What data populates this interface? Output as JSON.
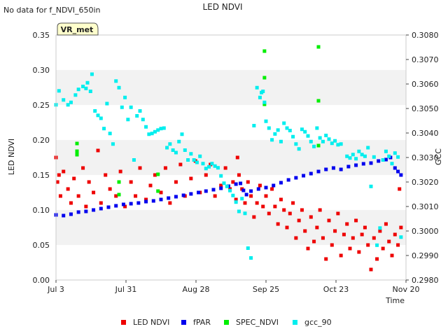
{
  "header": {
    "title": "LED NDVI",
    "note": "No data for f_NDVI_650in",
    "badge": "VR_met"
  },
  "chart_data": {
    "type": "scatter",
    "title": "LED NDVI",
    "xlabel": "Time",
    "ylabel": "LED NDVI",
    "y2label": "GCC",
    "x_ticks": [
      "Jul 3",
      "Jul 31",
      "Aug 28",
      "Sep 25",
      "Oct 23",
      "Nov 20"
    ],
    "x_range": [
      "Jul 3",
      "Nov 20"
    ],
    "ylim": [
      0.0,
      0.35
    ],
    "y_ticks": [
      "0.00",
      "0.05",
      "0.10",
      "0.15",
      "0.20",
      "0.25",
      "0.30",
      "0.35"
    ],
    "y2lim": [
      0.298,
      0.308
    ],
    "y2_ticks": [
      "0.2980",
      "0.2990",
      "0.3000",
      "0.3010",
      "0.3020",
      "0.3030",
      "0.3040",
      "0.3050",
      "0.3060",
      "0.3070",
      "0.3080"
    ],
    "grid": "horizontal alternating bands",
    "legend": "bottom",
    "series": [
      {
        "name": "LED NDVI",
        "axis": "left",
        "color": "#ee0000",
        "points": [
          [
            0,
            0.175
          ],
          [
            1,
            0.14
          ],
          [
            2,
            0.15
          ],
          [
            3,
            0.12
          ],
          [
            5,
            0.155
          ],
          [
            8,
            0.13
          ],
          [
            10,
            0.11
          ],
          [
            12,
            0.145
          ],
          [
            15,
            0.12
          ],
          [
            18,
            0.16
          ],
          [
            20,
            0.105
          ],
          [
            22,
            0.14
          ],
          [
            25,
            0.125
          ],
          [
            28,
            0.185
          ],
          [
            30,
            0.11
          ],
          [
            33,
            0.15
          ],
          [
            36,
            0.13
          ],
          [
            40,
            0.12
          ],
          [
            43,
            0.155
          ],
          [
            46,
            0.105
          ],
          [
            50,
            0.14
          ],
          [
            53,
            0.12
          ],
          [
            56,
            0.16
          ],
          [
            60,
            0.115
          ],
          [
            63,
            0.135
          ],
          [
            66,
            0.15
          ],
          [
            70,
            0.125
          ],
          [
            73,
            0.16
          ],
          [
            76,
            0.11
          ],
          [
            80,
            0.14
          ],
          [
            83,
            0.165
          ],
          [
            86,
            0.12
          ],
          [
            90,
            0.145
          ],
          [
            93,
            0.17
          ],
          [
            96,
            0.125
          ],
          [
            100,
            0.15
          ],
          [
            103,
            0.165
          ],
          [
            106,
            0.12
          ],
          [
            110,
            0.135
          ],
          [
            113,
            0.16
          ],
          [
            116,
            0.13
          ],
          [
            118,
            0.14
          ],
          [
            120,
            0.115
          ],
          [
            121,
            0.175
          ],
          [
            122,
            0.15
          ],
          [
            124,
            0.13
          ],
          [
            126,
            0.11
          ],
          [
            128,
            0.14
          ],
          [
            130,
            0.12
          ],
          [
            132,
            0.09
          ],
          [
            134,
            0.11
          ],
          [
            136,
            0.135
          ],
          [
            138,
            0.105
          ],
          [
            140,
            0.12
          ],
          [
            142,
            0.095
          ],
          [
            144,
            0.13
          ],
          [
            146,
            0.105
          ],
          [
            148,
            0.08
          ],
          [
            150,
            0.115
          ],
          [
            152,
            0.1
          ],
          [
            154,
            0.075
          ],
          [
            156,
            0.095
          ],
          [
            158,
            0.11
          ],
          [
            160,
            0.06
          ],
          [
            162,
            0.085
          ],
          [
            164,
            0.1
          ],
          [
            166,
            0.07
          ],
          [
            168,
            0.045
          ],
          [
            170,
            0.09
          ],
          [
            172,
            0.055
          ],
          [
            174,
            0.075
          ],
          [
            176,
            0.1
          ],
          [
            178,
            0.06
          ],
          [
            180,
            0.03
          ],
          [
            182,
            0.085
          ],
          [
            184,
            0.05
          ],
          [
            186,
            0.07
          ],
          [
            188,
            0.095
          ],
          [
            190,
            0.035
          ],
          [
            192,
            0.065
          ],
          [
            194,
            0.08
          ],
          [
            196,
            0.045
          ],
          [
            198,
            0.06
          ],
          [
            200,
            0.085
          ],
          [
            202,
            0.04
          ],
          [
            204,
            0.065
          ],
          [
            206,
            0.075
          ],
          [
            208,
            0.05
          ],
          [
            210,
            0.015
          ],
          [
            212,
            0.06
          ],
          [
            214,
            0.03
          ],
          [
            216,
            0.07
          ],
          [
            218,
            0.045
          ],
          [
            220,
            0.08
          ],
          [
            222,
            0.055
          ],
          [
            224,
            0.035
          ],
          [
            226,
            0.065
          ],
          [
            228,
            0.05
          ],
          [
            229,
            0.13
          ],
          [
            230,
            0.075
          ]
        ]
      },
      {
        "name": "fPAR",
        "axis": "left",
        "color": "#0000ee",
        "points": [
          [
            0,
            0.093
          ],
          [
            5,
            0.092
          ],
          [
            10,
            0.094
          ],
          [
            15,
            0.097
          ],
          [
            20,
            0.098
          ],
          [
            25,
            0.1
          ],
          [
            30,
            0.102
          ],
          [
            35,
            0.104
          ],
          [
            40,
            0.106
          ],
          [
            45,
            0.108
          ],
          [
            50,
            0.109
          ],
          [
            55,
            0.11
          ],
          [
            60,
            0.112
          ],
          [
            65,
            0.113
          ],
          [
            70,
            0.115
          ],
          [
            75,
            0.117
          ],
          [
            80,
            0.119
          ],
          [
            85,
            0.121
          ],
          [
            90,
            0.123
          ],
          [
            95,
            0.125
          ],
          [
            100,
            0.127
          ],
          [
            105,
            0.129
          ],
          [
            110,
            0.131
          ],
          [
            115,
            0.134
          ],
          [
            120,
            0.137
          ],
          [
            123,
            0.138
          ],
          [
            125,
            0.128
          ],
          [
            127,
            0.122
          ],
          [
            130,
            0.127
          ],
          [
            135,
            0.13
          ],
          [
            140,
            0.132
          ],
          [
            145,
            0.135
          ],
          [
            150,
            0.139
          ],
          [
            155,
            0.143
          ],
          [
            160,
            0.146
          ],
          [
            165,
            0.149
          ],
          [
            170,
            0.152
          ],
          [
            175,
            0.155
          ],
          [
            180,
            0.158
          ],
          [
            185,
            0.16
          ],
          [
            190,
            0.158
          ],
          [
            195,
            0.162
          ],
          [
            200,
            0.164
          ],
          [
            205,
            0.166
          ],
          [
            210,
            0.167
          ],
          [
            215,
            0.17
          ],
          [
            220,
            0.172
          ],
          [
            223,
            0.175
          ],
          [
            226,
            0.16
          ],
          [
            228,
            0.155
          ],
          [
            230,
            0.15
          ]
        ]
      },
      {
        "name": "SPEC_NDVI",
        "axis": "left",
        "color": "#00ee00",
        "points": [
          [
            14,
            0.195
          ],
          [
            14,
            0.184
          ],
          [
            14,
            0.179
          ],
          [
            42,
            0.14
          ],
          [
            42,
            0.122
          ],
          [
            68,
            0.151
          ],
          [
            68,
            0.127
          ],
          [
            139,
            0.327
          ],
          [
            139,
            0.289
          ],
          [
            139,
            0.251
          ],
          [
            175,
            0.333
          ],
          [
            175,
            0.256
          ],
          [
            175,
            0.192
          ]
        ]
      },
      {
        "name": "gcc_90",
        "axis": "right",
        "color": "#00eeee",
        "points": [
          [
            0,
            0.30515
          ],
          [
            2,
            0.30572
          ],
          [
            5,
            0.30535
          ],
          [
            8,
            0.30515
          ],
          [
            10,
            0.30525
          ],
          [
            13,
            0.30555
          ],
          [
            15,
            0.30578
          ],
          [
            18,
            0.3059
          ],
          [
            20,
            0.30582
          ],
          [
            21,
            0.30605
          ],
          [
            23,
            0.3057
          ],
          [
            24,
            0.3064
          ],
          [
            26,
            0.3049
          ],
          [
            28,
            0.30472
          ],
          [
            30,
            0.3046
          ],
          [
            32,
            0.30418
          ],
          [
            34,
            0.3052
          ],
          [
            36,
            0.30398
          ],
          [
            38,
            0.30355
          ],
          [
            40,
            0.30612
          ],
          [
            42,
            0.30585
          ],
          [
            44,
            0.30505
          ],
          [
            46,
            0.30545
          ],
          [
            48,
            0.30455
          ],
          [
            50,
            0.30505
          ],
          [
            52,
            0.3029
          ],
          [
            54,
            0.3047
          ],
          [
            56,
            0.3049
          ],
          [
            58,
            0.30455
          ],
          [
            60,
            0.30425
          ],
          [
            62,
            0.30395
          ],
          [
            64,
            0.30398
          ],
          [
            66,
            0.30405
          ],
          [
            68,
            0.30412
          ],
          [
            70,
            0.30418
          ],
          [
            72,
            0.3042
          ],
          [
            74,
            0.3034
          ],
          [
            76,
            0.30355
          ],
          [
            78,
            0.3033
          ],
          [
            80,
            0.3032
          ],
          [
            82,
            0.30365
          ],
          [
            84,
            0.30395
          ],
          [
            86,
            0.3033
          ],
          [
            88,
            0.3029
          ],
          [
            90,
            0.30315
          ],
          [
            92,
            0.3029
          ],
          [
            94,
            0.3028
          ],
          [
            96,
            0.30305
          ],
          [
            98,
            0.30275
          ],
          [
            100,
            0.30255
          ],
          [
            102,
            0.30262
          ],
          [
            104,
            0.30275
          ],
          [
            106,
            0.30265
          ],
          [
            108,
            0.30258
          ],
          [
            110,
            0.30225
          ],
          [
            112,
            0.30195
          ],
          [
            114,
            0.30182
          ],
          [
            116,
            0.30165
          ],
          [
            118,
            0.30145
          ],
          [
            120,
            0.30118
          ],
          [
            122,
            0.3008
          ],
          [
            124,
            0.30132
          ],
          [
            126,
            0.30072
          ],
          [
            128,
            0.2993
          ],
          [
            130,
            0.2989
          ],
          [
            132,
            0.3043
          ],
          [
            134,
            0.30585
          ],
          [
            136,
            0.30545
          ],
          [
            137,
            0.30565
          ],
          [
            138,
            0.3057
          ],
          [
            139,
            0.30525
          ],
          [
            140,
            0.30448
          ],
          [
            142,
            0.3042
          ],
          [
            144,
            0.30372
          ],
          [
            146,
            0.30396
          ],
          [
            148,
            0.30412
          ],
          [
            150,
            0.30365
          ],
          [
            152,
            0.3044
          ],
          [
            154,
            0.3042
          ],
          [
            156,
            0.3041
          ],
          [
            158,
            0.30385
          ],
          [
            160,
            0.30355
          ],
          [
            162,
            0.30335
          ],
          [
            164,
            0.30415
          ],
          [
            166,
            0.30405
          ],
          [
            168,
            0.30388
          ],
          [
            170,
            0.30365
          ],
          [
            172,
            0.30345
          ],
          [
            174,
            0.3042
          ],
          [
            176,
            0.3038
          ],
          [
            178,
            0.30365
          ],
          [
            180,
            0.3039
          ],
          [
            182,
            0.30375
          ],
          [
            184,
            0.30358
          ],
          [
            186,
            0.30368
          ],
          [
            188,
            0.30352
          ],
          [
            190,
            0.30355
          ],
          [
            194,
            0.30305
          ],
          [
            196,
            0.30298
          ],
          [
            198,
            0.30312
          ],
          [
            200,
            0.30295
          ],
          [
            202,
            0.30325
          ],
          [
            204,
            0.30312
          ],
          [
            206,
            0.30305
          ],
          [
            208,
            0.3034
          ],
          [
            210,
            0.30182
          ],
          [
            212,
            0.30302
          ],
          [
            214,
            0.29942
          ],
          [
            216,
            0.30012
          ],
          [
            218,
            0.3029
          ],
          [
            220,
            0.30325
          ],
          [
            222,
            0.30305
          ],
          [
            224,
            0.30275
          ],
          [
            226,
            0.30318
          ],
          [
            228,
            0.30302
          ],
          [
            230,
            0.29975
          ]
        ]
      }
    ]
  }
}
